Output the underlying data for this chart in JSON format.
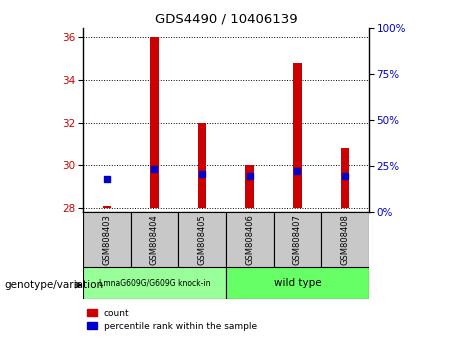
{
  "title": "GDS4490 / 10406139",
  "samples": [
    "GSM808403",
    "GSM808404",
    "GSM808405",
    "GSM808406",
    "GSM808407",
    "GSM808408"
  ],
  "bar_bottoms": [
    28,
    28,
    28,
    28,
    28,
    28
  ],
  "bar_tops": [
    28.12,
    36.0,
    32.0,
    30.0,
    34.8,
    30.8
  ],
  "percentile_values": [
    29.35,
    29.85,
    29.6,
    29.5,
    29.75,
    29.5
  ],
  "ylim_left": [
    27.8,
    36.4
  ],
  "ylim_right": [
    0,
    100
  ],
  "yticks_left": [
    28,
    30,
    32,
    34,
    36
  ],
  "yticks_right": [
    0,
    25,
    50,
    75,
    100
  ],
  "bar_color": "#cc0000",
  "percentile_color": "#0000cc",
  "group1_label": "LmnaG609G/G609G knock-in",
  "group2_label": "wild type",
  "group1_color": "#99ff99",
  "group2_color": "#66ff66",
  "group1_samples": [
    0,
    1,
    2
  ],
  "group2_samples": [
    3,
    4,
    5
  ],
  "xlabel_text": "genotype/variation",
  "legend_count_label": "count",
  "legend_percentile_label": "percentile rank within the sample",
  "bar_width": 0.18,
  "label_box_color": "#c8c8c8",
  "figsize": [
    4.61,
    3.54
  ],
  "dpi": 100
}
